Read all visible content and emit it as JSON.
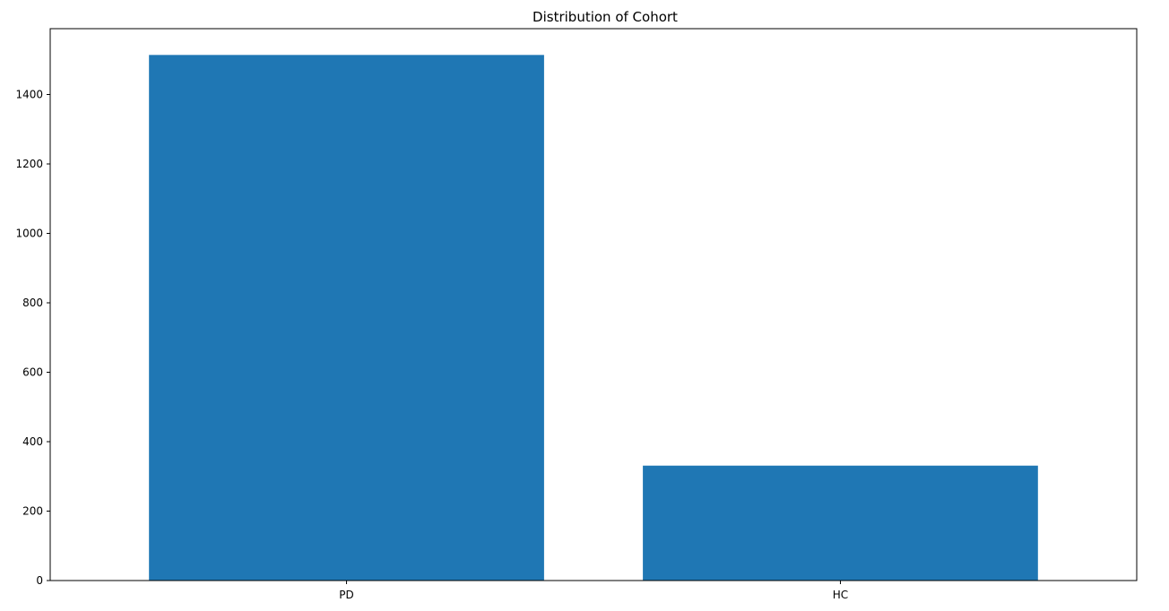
{
  "chart_data": {
    "type": "bar",
    "title": "Distribution of Cohort",
    "xlabel": "",
    "ylabel": "",
    "categories": [
      "PD",
      "HC"
    ],
    "values": [
      1514,
      331
    ],
    "ylim": [
      0,
      1589.7
    ],
    "yticks": [
      0,
      200,
      400,
      600,
      800,
      1000,
      1200,
      1400
    ],
    "grid": false,
    "legend": "none",
    "bar_color": "#1f77b4"
  }
}
